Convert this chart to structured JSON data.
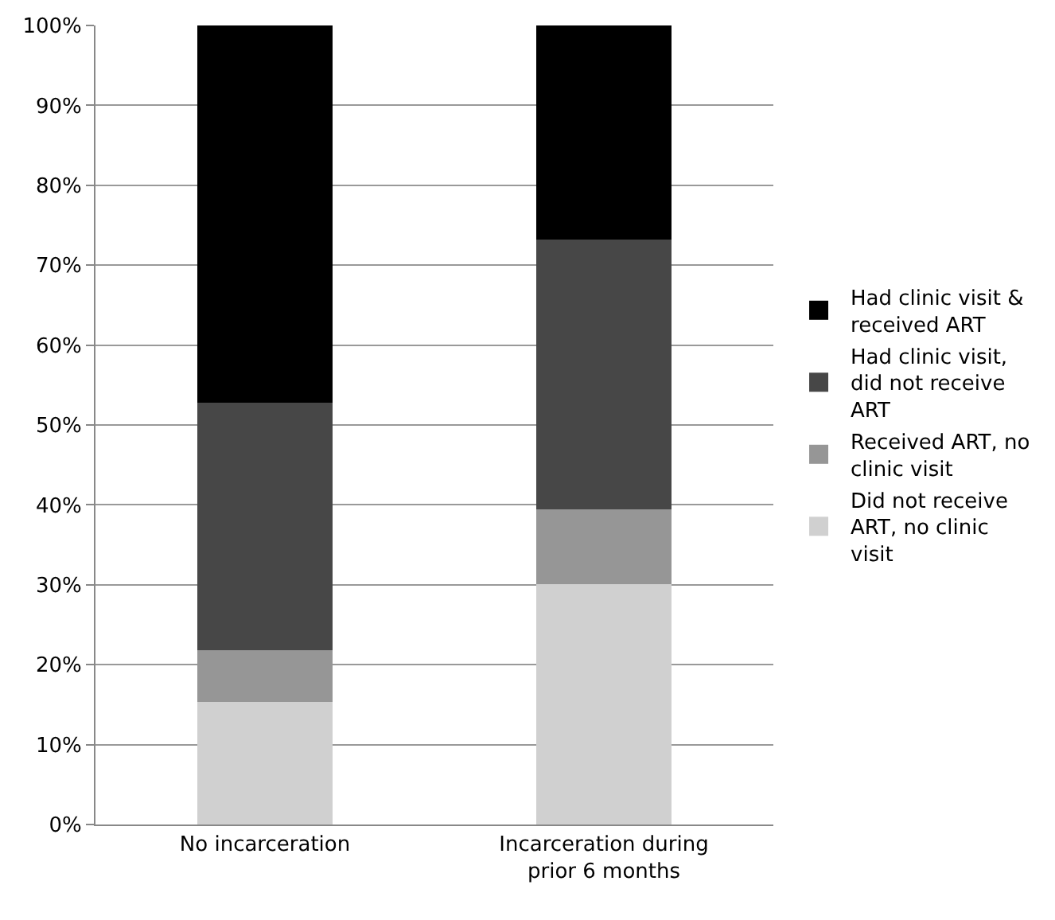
{
  "chart_data": {
    "type": "bar",
    "stacked": true,
    "categories": [
      "No incarceration",
      "Incarceration during prior 6 months"
    ],
    "series": [
      {
        "name": "Did not receive ART, no clinic visit",
        "color": "#d0d0d0",
        "values": [
          15.3,
          30.1
        ]
      },
      {
        "name": "Received ART, no clinic visit",
        "color": "#969696",
        "values": [
          6.5,
          9.3
        ]
      },
      {
        "name": "Had clinic visit, did not receive ART",
        "color": "#474747",
        "values": [
          31.0,
          33.8
        ]
      },
      {
        "name": "Had clinic visit & received ART",
        "color": "#000000",
        "values": [
          47.2,
          26.8
        ]
      }
    ],
    "ylim": [
      0,
      100
    ],
    "yticks": [
      {
        "value": 0,
        "label": "0%"
      },
      {
        "value": 10,
        "label": "10%"
      },
      {
        "value": 20,
        "label": "20%"
      },
      {
        "value": 30,
        "label": "30%"
      },
      {
        "value": 40,
        "label": "40%"
      },
      {
        "value": 50,
        "label": "50%"
      },
      {
        "value": 60,
        "label": "60%"
      },
      {
        "value": 70,
        "label": "70%"
      },
      {
        "value": 80,
        "label": "80%"
      },
      {
        "value": 90,
        "label": "90%"
      },
      {
        "value": 100,
        "label": "100%"
      }
    ],
    "grid": "y",
    "legend": "right"
  }
}
